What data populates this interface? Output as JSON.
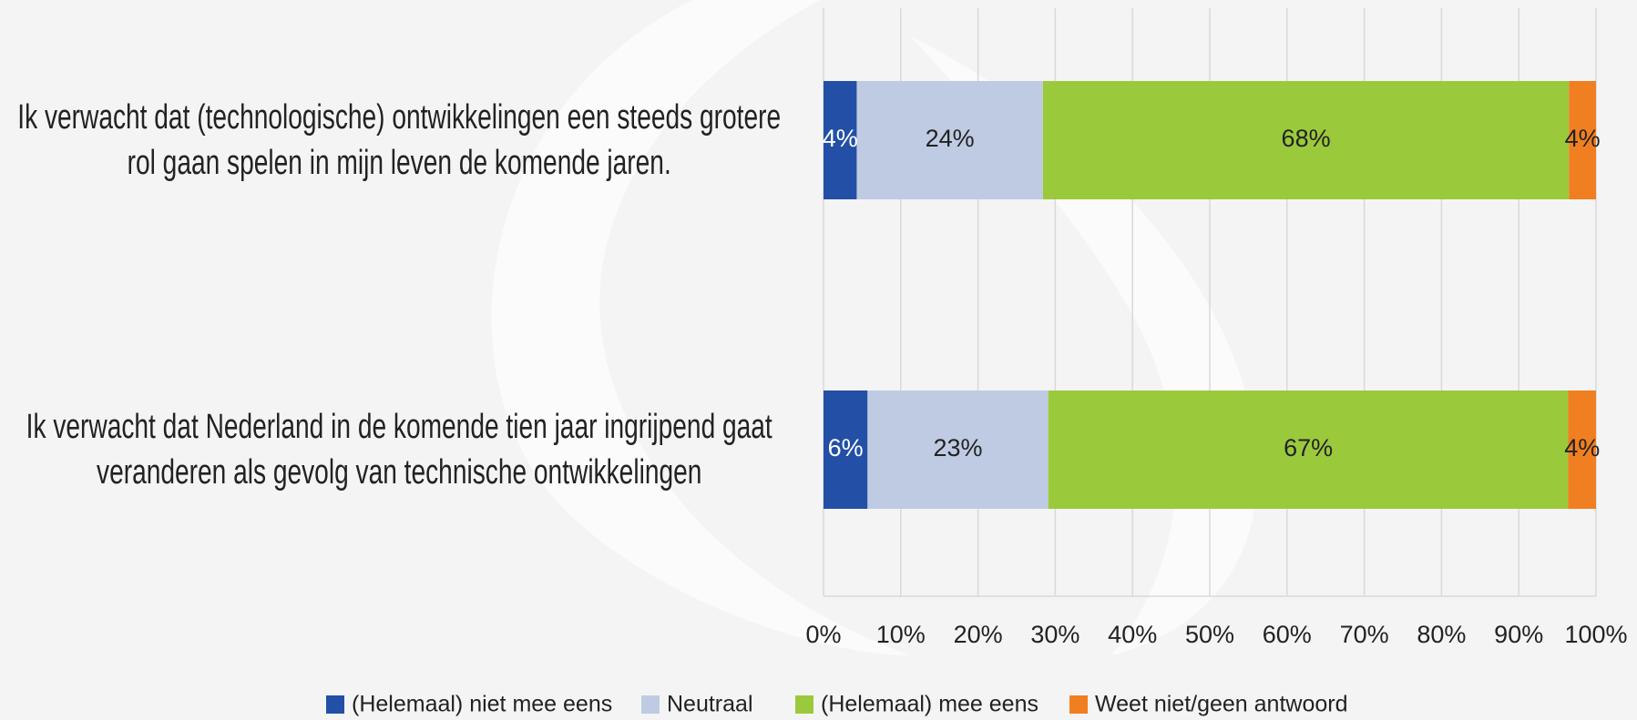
{
  "chart_data": {
    "type": "stacked-barh",
    "categories": [
      "Ik verwacht dat (technologische) ontwikkelingen een steeds grotere rol gaan spelen in mijn leven de komende jaren.",
      "Ik verwacht dat Nederland in de komende tien jaar ingrijpend gaat veranderen als gevolg van technische ontwikkelingen"
    ],
    "series": [
      {
        "name": "(Helemaal) niet mee eens",
        "color": "#2350a6",
        "values": [
          4.3,
          5.7
        ],
        "value_labels": [
          "4%",
          "6%"
        ]
      },
      {
        "name": "Neutraal",
        "color": "#bfcbe3",
        "values": [
          24.1,
          23.4
        ],
        "value_labels": [
          "24%",
          "23%"
        ]
      },
      {
        "name": "(Helemaal) mee eens",
        "color": "#9bc93c",
        "values": [
          68.1,
          67.3
        ],
        "value_labels": [
          "68%",
          "67%"
        ]
      },
      {
        "name": "Weet niet/geen antwoord",
        "color": "#f07f21",
        "values": [
          3.5,
          3.6
        ],
        "value_labels": [
          "4%",
          "4%"
        ]
      }
    ],
    "xlim": [
      0,
      100
    ],
    "xticks": [
      {
        "value": 0,
        "label": "0%"
      },
      {
        "value": 10,
        "label": "10%"
      },
      {
        "value": 20,
        "label": "20%"
      },
      {
        "value": 30,
        "label": "30%"
      },
      {
        "value": 40,
        "label": "40%"
      },
      {
        "value": 50,
        "label": "50%"
      },
      {
        "value": 60,
        "label": "60%"
      },
      {
        "value": 70,
        "label": "70%"
      },
      {
        "value": 80,
        "label": "80%"
      },
      {
        "value": 90,
        "label": "90%"
      },
      {
        "value": 100,
        "label": "100%"
      }
    ],
    "grid": true,
    "legend": "bottom"
  }
}
